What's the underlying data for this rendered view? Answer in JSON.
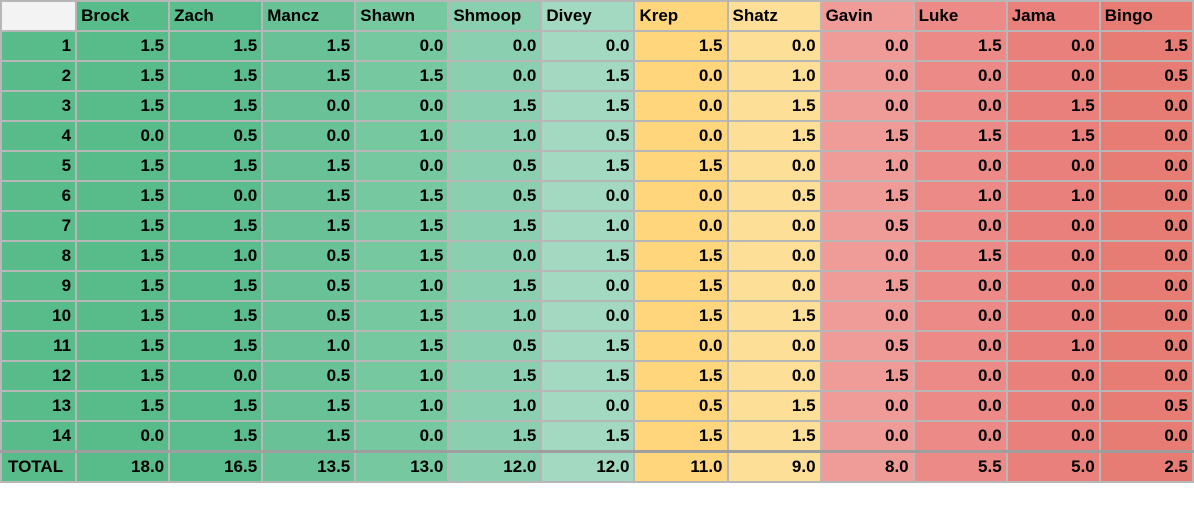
{
  "players": [
    {
      "name": "Brock",
      "color": "#57bb8a",
      "scores": [
        "1.5",
        "1.5",
        "1.5",
        "0.0",
        "1.5",
        "1.5",
        "1.5",
        "1.5",
        "1.5",
        "1.5",
        "1.5",
        "1.5",
        "1.5",
        "0.0"
      ],
      "total": "18.0"
    },
    {
      "name": "Zach",
      "color": "#5bbd8d",
      "scores": [
        "1.5",
        "1.5",
        "1.5",
        "0.5",
        "1.5",
        "0.0",
        "1.5",
        "1.0",
        "1.5",
        "1.5",
        "1.5",
        "0.0",
        "1.5",
        "1.5"
      ],
      "total": "16.5"
    },
    {
      "name": "Mancz",
      "color": "#69c297",
      "scores": [
        "1.5",
        "1.5",
        "0.0",
        "0.0",
        "1.5",
        "1.5",
        "1.5",
        "0.5",
        "0.5",
        "0.5",
        "1.0",
        "0.5",
        "1.5",
        "1.5"
      ],
      "total": "13.5"
    },
    {
      "name": "Shawn",
      "color": "#75c8a0",
      "scores": [
        "0.0",
        "1.5",
        "0.0",
        "1.0",
        "0.0",
        "1.5",
        "1.5",
        "1.5",
        "1.0",
        "1.5",
        "1.5",
        "1.0",
        "1.0",
        "0.0"
      ],
      "total": "13.0"
    },
    {
      "name": "Shmoop",
      "color": "#8acfb0",
      "scores": [
        "0.0",
        "0.0",
        "1.5",
        "1.0",
        "0.5",
        "0.5",
        "1.5",
        "0.0",
        "1.5",
        "1.0",
        "0.5",
        "1.5",
        "1.0",
        "1.5"
      ],
      "total": "12.0"
    },
    {
      "name": "Divey",
      "color": "#a3d9c0",
      "scores": [
        "0.0",
        "1.5",
        "1.5",
        "0.5",
        "1.5",
        "0.0",
        "1.0",
        "1.5",
        "0.0",
        "0.0",
        "1.5",
        "1.5",
        "0.0",
        "1.5"
      ],
      "total": "12.0"
    },
    {
      "name": "Krep",
      "color": "#ffd67c",
      "scores": [
        "1.5",
        "0.0",
        "0.0",
        "0.0",
        "1.5",
        "0.0",
        "0.0",
        "1.5",
        "1.5",
        "1.5",
        "0.0",
        "1.5",
        "0.5",
        "1.5"
      ],
      "total": "11.0"
    },
    {
      "name": "Shatz",
      "color": "#fedf98",
      "scores": [
        "0.0",
        "1.0",
        "1.5",
        "1.5",
        "0.0",
        "0.5",
        "0.0",
        "0.0",
        "0.0",
        "1.5",
        "0.0",
        "0.0",
        "1.5",
        "1.5"
      ],
      "total": "9.0"
    },
    {
      "name": "Gavin",
      "color": "#ef9b98",
      "scores": [
        "0.0",
        "0.0",
        "0.0",
        "1.5",
        "1.0",
        "1.5",
        "0.5",
        "0.0",
        "1.5",
        "0.0",
        "0.5",
        "1.5",
        "0.0",
        "0.0"
      ],
      "total": "8.0"
    },
    {
      "name": "Luke",
      "color": "#eb8a86",
      "scores": [
        "1.5",
        "0.0",
        "0.0",
        "1.5",
        "0.0",
        "1.0",
        "0.0",
        "1.5",
        "0.0",
        "0.0",
        "0.0",
        "0.0",
        "0.0",
        "0.0"
      ],
      "total": "5.5"
    },
    {
      "name": "Jama",
      "color": "#e9807b",
      "scores": [
        "0.0",
        "0.0",
        "1.5",
        "1.5",
        "0.0",
        "1.0",
        "0.0",
        "0.0",
        "0.0",
        "0.0",
        "1.0",
        "0.0",
        "0.0",
        "0.0"
      ],
      "total": "5.0"
    },
    {
      "name": "Bingo",
      "color": "#e67c73",
      "scores": [
        "1.5",
        "0.5",
        "0.0",
        "0.0",
        "0.0",
        "0.0",
        "0.0",
        "0.0",
        "0.0",
        "0.0",
        "0.0",
        "0.0",
        "0.5",
        "0.0"
      ],
      "total": "2.5"
    }
  ],
  "row_labels": [
    "1",
    "2",
    "3",
    "4",
    "5",
    "6",
    "7",
    "8",
    "9",
    "10",
    "11",
    "12",
    "13",
    "14"
  ],
  "total_label": "TOTAL",
  "colors": {
    "header_corner": "#f3f3f3",
    "row_label_bg": "#57bb8a",
    "grid_border": "#b7b7b7"
  }
}
